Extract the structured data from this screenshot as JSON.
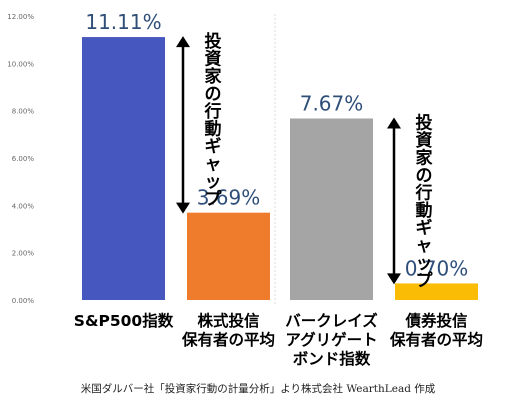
{
  "chart_data": {
    "type": "bar",
    "categories": [
      [
        "S&P500指数"
      ],
      [
        "株式投信",
        "保有者の平均"
      ],
      [
        "バークレイズ",
        "アグリゲート",
        "ボンド指数"
      ],
      [
        "債券投信",
        "保有者の平均"
      ]
    ],
    "values": [
      11.11,
      3.69,
      7.67,
      0.7
    ],
    "value_labels": [
      "11.11%",
      "3.69%",
      "7.67%",
      "0.70%"
    ],
    "colors": [
      "#4657c0",
      "#ee7c2c",
      "#a5a5a5",
      "#fbbc06"
    ],
    "ylim": [
      0,
      12
    ],
    "yticks": [
      "0.00%",
      "2.00%",
      "4.00%",
      "6.00%",
      "8.00%",
      "10.00%",
      "12.00%"
    ],
    "grid": false,
    "annotations": [
      {
        "text": "投資家の行動ギャップ",
        "from_value": 11.11,
        "to_value": 3.69
      },
      {
        "text": "投資家の行動ギャップ",
        "from_value": 7.67,
        "to_value": 0.7
      }
    ],
    "source": "米国ダルバー社「投資家行動の計量分析」より株式会社 WearthLead 作成"
  }
}
